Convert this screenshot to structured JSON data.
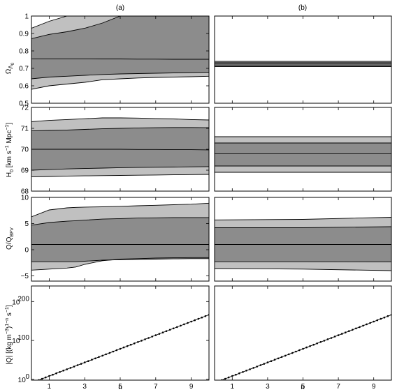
{
  "colors": {
    "outer_band": "#c0c0c0",
    "inner_band": "#8c8c8c",
    "line": "#000000",
    "background": "#ffffff"
  },
  "chart_data": [
    {
      "id": "omega-a",
      "type": "area",
      "column_title": "(a)",
      "ylabel": "Ω_Λ0",
      "ylim": [
        0.5,
        1.0
      ],
      "yticks": [
        "0.5",
        "0.6",
        "0.7",
        "0.8",
        "0.9",
        "1"
      ],
      "ytick_values": [
        0.5,
        0.6,
        0.7,
        0.8,
        0.9,
        1.0
      ],
      "xlim": [
        0,
        10
      ],
      "x": [
        0,
        1,
        2,
        3,
        4,
        5,
        6,
        7,
        8,
        9,
        10
      ],
      "outer_lower": [
        0.58,
        0.6,
        0.61,
        0.62,
        0.635,
        0.64,
        0.645,
        0.648,
        0.65,
        0.652,
        0.655
      ],
      "outer_upper": [
        0.93,
        0.97,
        1.0,
        1.0,
        1.0,
        1.0,
        1.0,
        1.0,
        1.0,
        1.0,
        1.0
      ],
      "inner_lower": [
        0.64,
        0.65,
        0.655,
        0.66,
        0.665,
        0.668,
        0.67,
        0.672,
        0.674,
        0.676,
        0.678
      ],
      "inner_upper": [
        0.87,
        0.895,
        0.91,
        0.93,
        0.96,
        1.0,
        1.0,
        1.0,
        1.0,
        1.0,
        1.0
      ],
      "center": [
        0.755,
        0.755,
        0.755,
        0.755,
        0.754,
        0.754,
        0.753,
        0.753,
        0.752,
        0.752,
        0.752
      ]
    },
    {
      "id": "omega-b",
      "type": "area",
      "column_title": "(b)",
      "ylim": [
        0.5,
        1.0
      ],
      "xlim": [
        0,
        10
      ],
      "x": [
        0,
        10
      ],
      "outer_lower": [
        0.71,
        0.71
      ],
      "outer_upper": [
        0.74,
        0.74
      ],
      "inner_lower": [
        0.717,
        0.717
      ],
      "inner_upper": [
        0.733,
        0.733
      ],
      "center": [
        0.725,
        0.725
      ]
    },
    {
      "id": "h0-a",
      "type": "area",
      "ylabel": "H_0 [km s^-1 Mpc^-1]",
      "ylim": [
        68,
        72
      ],
      "yticks": [
        "68",
        "69",
        "70",
        "71",
        "72"
      ],
      "ytick_values": [
        68,
        69,
        70,
        71,
        72
      ],
      "xlim": [
        0,
        10
      ],
      "x": [
        0,
        1,
        2,
        3,
        4,
        5,
        6,
        7,
        8,
        9,
        10
      ],
      "outer_lower": [
        68.68,
        68.7,
        68.72,
        68.73,
        68.74,
        68.75,
        68.76,
        68.77,
        68.78,
        68.79,
        68.8
      ],
      "outer_upper": [
        71.32,
        71.38,
        71.42,
        71.46,
        71.5,
        71.5,
        71.49,
        71.47,
        71.45,
        71.42,
        71.4
      ],
      "inner_lower": [
        69.0,
        69.03,
        69.06,
        69.08,
        69.1,
        69.12,
        69.13,
        69.14,
        69.15,
        69.16,
        69.17
      ],
      "inner_upper": [
        70.88,
        70.9,
        70.92,
        70.95,
        70.98,
        71.0,
        71.02,
        71.03,
        71.04,
        71.04,
        71.03
      ],
      "center": [
        70.0,
        70.0,
        70.0,
        70.0,
        70.0,
        70.0,
        69.99,
        69.99,
        69.98,
        69.98,
        69.97
      ]
    },
    {
      "id": "h0-b",
      "type": "area",
      "ylim": [
        68,
        72
      ],
      "xlim": [
        0,
        10
      ],
      "x": [
        0,
        10
      ],
      "outer_lower": [
        68.9,
        68.9
      ],
      "outer_upper": [
        70.6,
        70.6
      ],
      "inner_lower": [
        69.2,
        69.2
      ],
      "inner_upper": [
        70.3,
        70.3
      ],
      "center": [
        69.78,
        69.78
      ]
    },
    {
      "id": "q-a",
      "type": "area",
      "ylabel": "Q/Q_BFV",
      "ylim": [
        -6,
        10
      ],
      "yticks": [
        "−5",
        "0",
        "5",
        "10"
      ],
      "ytick_values": [
        -5,
        0,
        5,
        10
      ],
      "xlim": [
        0,
        10
      ],
      "x": [
        0,
        1,
        2,
        2.5,
        3,
        4,
        5,
        6,
        7,
        8,
        9,
        10
      ],
      "outer_lower": [
        -3.9,
        -3.7,
        -3.5,
        -3.3,
        -2.8,
        -2.1,
        -1.8,
        -1.7,
        -1.6,
        -1.55,
        -1.5,
        -1.5
      ],
      "outer_upper": [
        6.3,
        7.6,
        8.0,
        8.1,
        8.15,
        8.2,
        8.3,
        8.4,
        8.5,
        8.6,
        8.7,
        8.9
      ],
      "inner_lower": [
        -2.3,
        -2.3,
        -2.3,
        -2.3,
        -2.2,
        -2.0,
        -1.9,
        -1.85,
        -1.8,
        -1.75,
        -1.7,
        -1.7
      ],
      "inner_upper": [
        4.7,
        5.2,
        5.45,
        5.55,
        5.65,
        5.85,
        5.95,
        6.05,
        6.1,
        6.15,
        6.15,
        6.15
      ],
      "center": [
        1.0,
        1.0,
        1.0,
        1.0,
        1.0,
        1.0,
        1.0,
        1.0,
        1.0,
        1.0,
        1.0,
        1.0
      ]
    },
    {
      "id": "q-b",
      "type": "area",
      "ylim": [
        -6,
        10
      ],
      "xlim": [
        0,
        10
      ],
      "x": [
        0,
        5,
        10
      ],
      "outer_lower": [
        -3.6,
        -3.7,
        -4.0
      ],
      "outer_upper": [
        5.7,
        5.8,
        6.2
      ],
      "inner_lower": [
        -2.3,
        -2.3,
        -2.35
      ],
      "inner_upper": [
        4.2,
        4.2,
        4.4
      ],
      "center": [
        1.0,
        1.0,
        1.0
      ]
    },
    {
      "id": "abs-q-a",
      "type": "line",
      "ylabel": "|Q| [(kg m^-3)^(1-n) s^-1]",
      "yscale": "log",
      "ylim_log10": [
        -2,
        240
      ],
      "yticks": [
        "10^0",
        "10^100",
        "10^200"
      ],
      "ytick_values_log10": [
        0,
        100,
        200
      ],
      "xlabel": "n",
      "xlim": [
        0,
        10
      ],
      "xticks": [
        "1",
        "3",
        "5",
        "7",
        "9"
      ],
      "xtick_values": [
        1,
        3,
        5,
        7,
        9
      ],
      "x_range": [
        0,
        10
      ],
      "log10_y_range": [
        -9,
        166
      ],
      "marker_count": 51
    },
    {
      "id": "abs-q-b",
      "type": "line",
      "yscale": "log",
      "ylim_log10": [
        -2,
        240
      ],
      "xlabel": "n",
      "xlim": [
        0,
        10
      ],
      "xticks": [
        "1",
        "3",
        "5",
        "7",
        "9"
      ],
      "xtick_values": [
        1,
        3,
        5,
        7,
        9
      ],
      "x_range": [
        0,
        10
      ],
      "log10_y_range": [
        -9,
        166
      ],
      "marker_count": 51
    }
  ]
}
